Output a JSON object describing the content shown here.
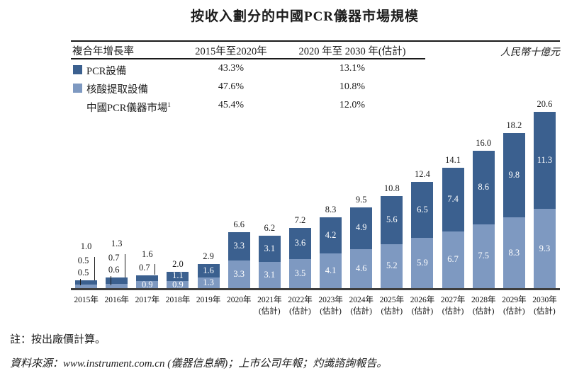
{
  "title": "按收入劃分的中國PCR儀器市場規模",
  "unit_label": "人民幣十億元",
  "cagr_table": {
    "header": {
      "col0": "複合年增長率",
      "col1": "2015年至2020年",
      "col2": "2020 年至 2030 年(估計)"
    },
    "rows": [
      {
        "label": "PCR設備",
        "cagr_2015_2020": "43.3%",
        "cagr_2020_2030": "13.1%"
      },
      {
        "label": "核酸提取設備",
        "cagr_2015_2020": "47.6%",
        "cagr_2020_2030": "10.8%"
      },
      {
        "label": "中國PCR儀器市場",
        "sup": "1",
        "cagr_2015_2020": "45.4%",
        "cagr_2020_2030": "12.0%"
      }
    ]
  },
  "chart_data": {
    "type": "bar",
    "stacked": true,
    "title": "按收入劃分的中國PCR儀器市場規模",
    "ylabel": "人民幣十億元",
    "ylim": [
      0,
      22
    ],
    "grid": false,
    "legend_position": "top-left-table",
    "categories": [
      "2015年",
      "2016年",
      "2017年",
      "2018年",
      "2019年",
      "2020年",
      "2021年",
      "2022年",
      "2023年",
      "2024年",
      "2025年",
      "2026年",
      "2027年",
      "2028年",
      "2029年",
      "2030年"
    ],
    "estimated_suffix": "(估計)",
    "estimated_from_index": 6,
    "series": [
      {
        "name": "PCR設備",
        "stack_position": "top",
        "color": "#3b608f",
        "values": [
          0.5,
          0.7,
          0.7,
          1.1,
          1.6,
          3.3,
          3.1,
          3.6,
          4.2,
          4.9,
          5.6,
          6.5,
          7.4,
          8.6,
          9.8,
          11.3
        ]
      },
      {
        "name": "核酸提取設備",
        "stack_position": "bottom",
        "color": "#7e99c1",
        "values": [
          0.5,
          0.6,
          0.9,
          0.9,
          1.3,
          3.3,
          3.1,
          3.5,
          4.1,
          4.6,
          5.2,
          5.9,
          6.7,
          7.5,
          8.3,
          9.3
        ]
      }
    ],
    "totals": [
      1.0,
      1.3,
      1.6,
      2.0,
      2.9,
      6.6,
      6.2,
      7.2,
      8.3,
      9.5,
      10.8,
      12.4,
      14.1,
      16.0,
      18.2,
      20.6
    ],
    "label_placement": [
      "both_out",
      "both_out",
      "dark_out",
      "inside",
      "inside",
      "inside",
      "inside",
      "inside",
      "inside",
      "inside",
      "inside",
      "inside",
      "inside",
      "inside",
      "inside",
      "inside"
    ]
  },
  "notes": {
    "note": "註：按出廠價計算。",
    "source": "資料來源：www.instrument.com.cn (儀器信息網)；上市公司年報；灼識諮詢報告。"
  },
  "colors": {
    "pcr_equipment": "#3b608f",
    "nucleic_acid_extraction": "#7e99c1",
    "text": "#1c1c1c",
    "axis": "#3e3e3e"
  }
}
